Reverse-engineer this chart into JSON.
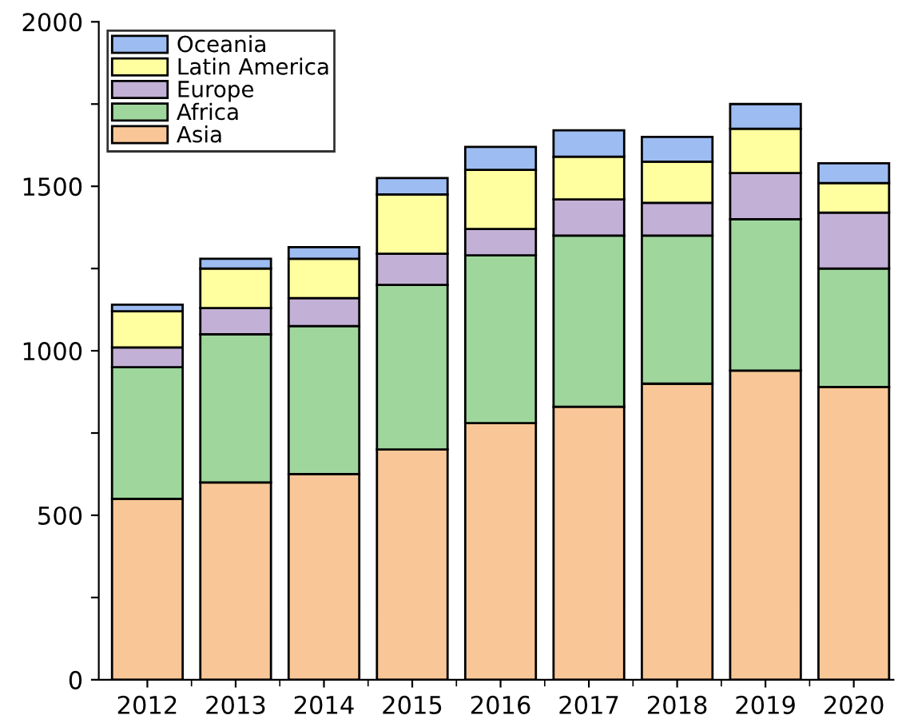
{
  "chart_data": {
    "type": "bar",
    "stacked": true,
    "categories": [
      "2012",
      "2013",
      "2014",
      "2015",
      "2016",
      "2017",
      "2018",
      "2019",
      "2020"
    ],
    "series": [
      {
        "name": "Asia",
        "color": "#f9c797",
        "values": [
          550,
          600,
          625,
          700,
          780,
          830,
          900,
          940,
          890
        ]
      },
      {
        "name": "Africa",
        "color": "#9fd69c",
        "values": [
          400,
          450,
          450,
          500,
          510,
          520,
          450,
          460,
          360
        ]
      },
      {
        "name": "Europe",
        "color": "#c3b0d6",
        "values": [
          60,
          80,
          85,
          95,
          80,
          110,
          100,
          140,
          170
        ]
      },
      {
        "name": "Latin America",
        "color": "#ffff9f",
        "values": [
          110,
          120,
          120,
          180,
          180,
          130,
          125,
          135,
          90
        ]
      },
      {
        "name": "Oceania",
        "color": "#9dbcf2",
        "values": [
          20,
          30,
          35,
          50,
          70,
          80,
          75,
          75,
          60
        ]
      }
    ],
    "ylim": [
      0,
      2000
    ],
    "yticks": [
      0,
      {
        "value": 250,
        "label": null
      },
      500,
      {
        "value": 750,
        "label": null
      },
      1000,
      {
        "value": 1250,
        "label": null
      },
      1500,
      {
        "value": 1750,
        "label": null
      },
      2000
    ],
    "legend": "top left",
    "grid": false
  }
}
